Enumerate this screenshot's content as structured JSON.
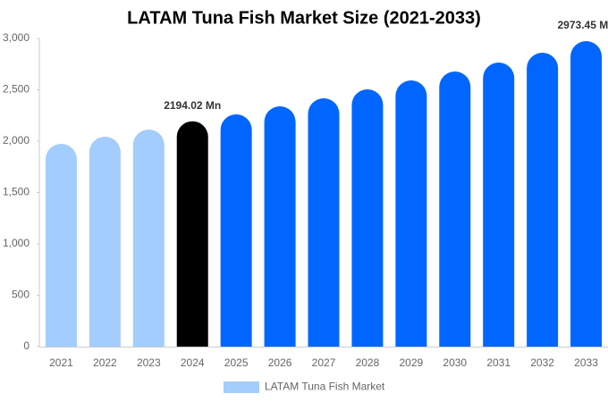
{
  "chart_data": {
    "type": "bar",
    "title": "LATAM Tuna Fish Market Size (2021-2033)",
    "categories": [
      "2021",
      "2022",
      "2023",
      "2024",
      "2025",
      "2026",
      "2027",
      "2028",
      "2029",
      "2030",
      "2031",
      "2032",
      "2033"
    ],
    "series": [
      {
        "name": "LATAM Tuna Fish Market",
        "color": "#a3cdfd",
        "values": [
          1974,
          2043,
          2113,
          2194.02,
          2261,
          2339,
          2417,
          2504,
          2591,
          2678,
          2765,
          2861,
          2973.45
        ],
        "value_labels": [
          null,
          null,
          null,
          "2194.02 Mn",
          null,
          null,
          null,
          null,
          null,
          null,
          null,
          null,
          "2973.45 Mn"
        ],
        "colors": [
          "#a3cdfd",
          "#a3cdfd",
          "#a3cdfd",
          "#000000",
          "#0066ff",
          "#0066ff",
          "#0066ff",
          "#0066ff",
          "#0066ff",
          "#0066ff",
          "#0066ff",
          "#0066ff",
          "#0066ff"
        ]
      }
    ],
    "ylim": [
      0,
      3000
    ],
    "yticks": [
      0,
      500,
      {
        "value": 1000,
        "label": "1,000"
      },
      {
        "value": 1500,
        "label": "1,500"
      },
      {
        "value": 2000,
        "label": "2,000"
      },
      {
        "value": 2500,
        "label": "2,500"
      },
      {
        "value": 3000,
        "label": "3,000"
      }
    ],
    "grid": false,
    "legend": "bottom"
  }
}
